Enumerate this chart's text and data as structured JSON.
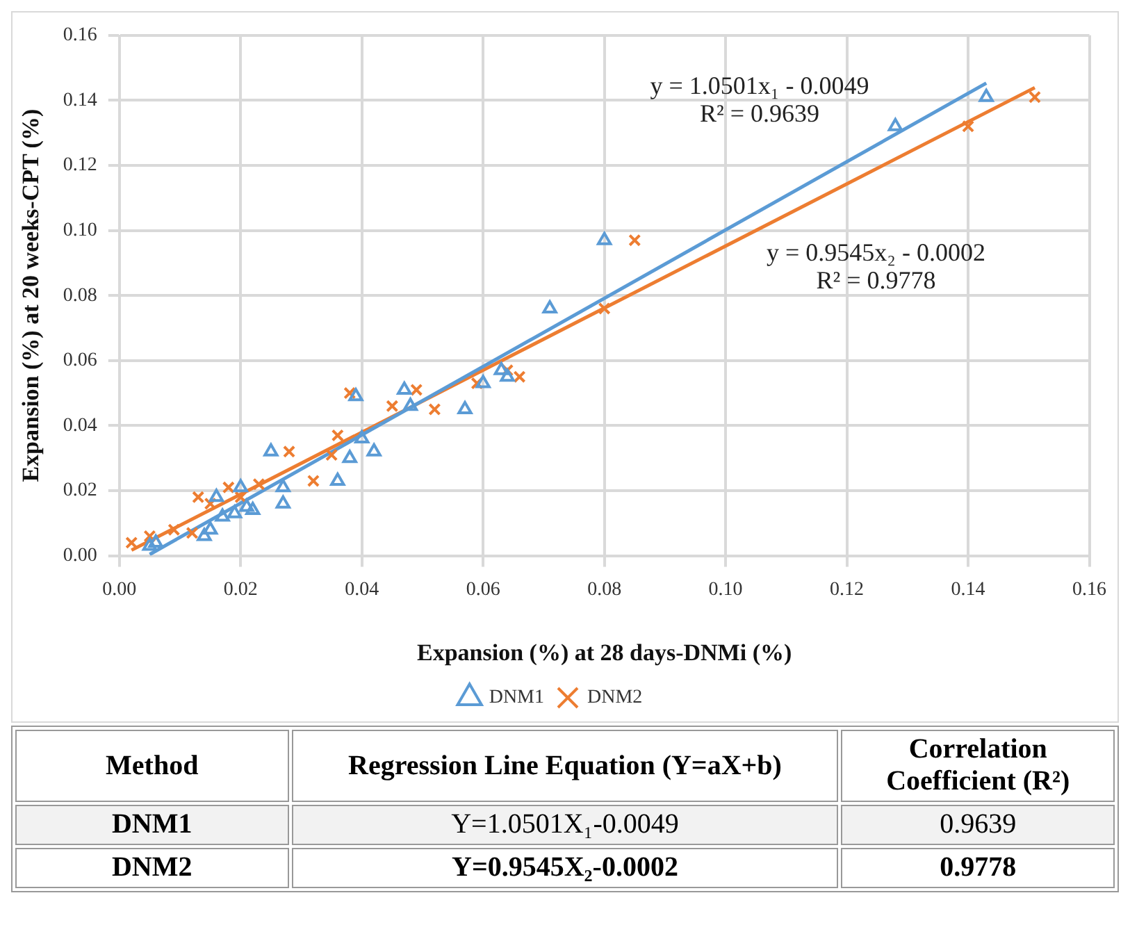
{
  "chart_data": {
    "type": "scatter",
    "xlabel": "Expansion (%) at 28 days-DNMi (%)",
    "ylabel": "Expansion (%) at 20 weeks-CPT (%)",
    "xlim": [
      0,
      0.16
    ],
    "xticks": [
      {
        "value": 0,
        "label": "0.00"
      },
      {
        "value": 0.02,
        "label": "0.02"
      },
      {
        "value": 0.04,
        "label": "0.04"
      },
      {
        "value": 0.06,
        "label": "0.06"
      },
      {
        "value": 0.08,
        "label": "0.08"
      },
      {
        "value": 0.1,
        "label": "0.10"
      },
      {
        "value": 0.12,
        "label": "0.12"
      },
      {
        "value": 0.14,
        "label": "0.14"
      },
      {
        "value": 0.16,
        "label": "0.16"
      }
    ],
    "ylim": [
      0,
      0.16
    ],
    "yticks": [
      {
        "value": 0,
        "label": "0.00"
      },
      {
        "value": 0.02,
        "label": "0.02"
      },
      {
        "value": 0.04,
        "label": "0.04"
      },
      {
        "value": 0.06,
        "label": "0.06"
      },
      {
        "value": 0.08,
        "label": "0.08"
      },
      {
        "value": 0.1,
        "label": "0.10"
      },
      {
        "value": 0.12,
        "label": "0.12"
      },
      {
        "value": 0.14,
        "label": "0.14"
      },
      {
        "value": 0.16,
        "label": "0.16"
      }
    ],
    "grid": true,
    "legend": "bottom",
    "series": [
      {
        "name": "DNM1",
        "color": "#5b9bd5",
        "marker": "triangle",
        "x": [
          0.005,
          0.006,
          0.014,
          0.015,
          0.016,
          0.017,
          0.019,
          0.02,
          0.021,
          0.022,
          0.025,
          0.027,
          0.027,
          0.036,
          0.038,
          0.039,
          0.04,
          0.042,
          0.047,
          0.048,
          0.057,
          0.06,
          0.063,
          0.064,
          0.071,
          0.08,
          0.128,
          0.143
        ],
        "values": [
          0.003,
          0.004,
          0.006,
          0.008,
          0.018,
          0.012,
          0.013,
          0.021,
          0.015,
          0.014,
          0.032,
          0.021,
          0.016,
          0.023,
          0.03,
          0.049,
          0.036,
          0.032,
          0.051,
          0.046,
          0.045,
          0.053,
          0.057,
          0.055,
          0.076,
          0.097,
          0.132,
          0.141
        ]
      },
      {
        "name": "DNM2",
        "color": "#ed7d31",
        "marker": "cross",
        "x": [
          0.002,
          0.005,
          0.009,
          0.012,
          0.013,
          0.015,
          0.018,
          0.02,
          0.023,
          0.028,
          0.032,
          0.035,
          0.036,
          0.038,
          0.045,
          0.049,
          0.052,
          0.059,
          0.064,
          0.066,
          0.08,
          0.085,
          0.14,
          0.151
        ],
        "values": [
          0.004,
          0.006,
          0.008,
          0.007,
          0.018,
          0.016,
          0.021,
          0.018,
          0.022,
          0.032,
          0.023,
          0.031,
          0.037,
          0.05,
          0.046,
          0.051,
          0.045,
          0.053,
          0.057,
          0.055,
          0.076,
          0.097,
          0.132,
          0.141
        ]
      },
      {
        "type": "line",
        "color": "#5b9bd5",
        "x": [
          0.005,
          0.143
        ],
        "values": [
          0.0004,
          0.1453
        ]
      },
      {
        "type": "line",
        "color": "#ed7d31",
        "x": [
          0.002,
          0.151
        ],
        "values": [
          0.0017,
          0.1439
        ]
      }
    ],
    "annotations": [
      "y = 1.0501x₁ - 0.0049\nR² = 0.9639",
      "y = 0.9545x₂ - 0.0002\nR² = 0.9778",
      "Method",
      "Regression Line Equation (Y=aX+b)",
      "Correlation Coefficient (R²)",
      "DNM1",
      "Y=1.0501X₁-0.0049",
      "0.9639",
      "DNM2",
      "Y=0.9545X₂-0.0002",
      "0.9778"
    ]
  }
}
